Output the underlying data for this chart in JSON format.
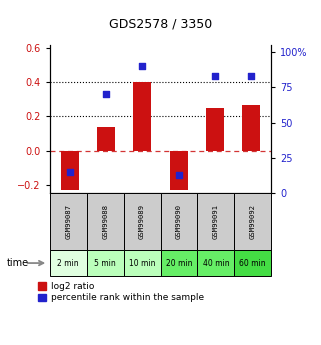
{
  "title": "GDS2578 / 3350",
  "samples": [
    "GSM99087",
    "GSM99088",
    "GSM99089",
    "GSM99090",
    "GSM99091",
    "GSM99092"
  ],
  "time_labels": [
    "2 min",
    "5 min",
    "10 min",
    "20 min",
    "40 min",
    "60 min"
  ],
  "log2_ratio": [
    -0.23,
    0.14,
    0.4,
    -0.23,
    0.25,
    0.27
  ],
  "percentile_rank": [
    15,
    70,
    90,
    13,
    83,
    83
  ],
  "ylim_left": [
    -0.25,
    0.62
  ],
  "ylim_right": [
    0,
    105
  ],
  "left_ticks": [
    -0.2,
    0.0,
    0.2,
    0.4,
    0.6
  ],
  "right_ticks": [
    0,
    25,
    50,
    75,
    100
  ],
  "right_tick_labels": [
    "0",
    "25",
    "50",
    "75",
    "100%"
  ],
  "bar_color": "#cc1111",
  "dot_color": "#2222cc",
  "dotted_line_y": [
    0.2,
    0.4
  ],
  "dashed_line_y": 0.0,
  "sample_bg_color": "#cccccc",
  "time_bg_colors": [
    "#e0ffe0",
    "#bbffbb",
    "#bbffbb",
    "#66ee66",
    "#66ee66",
    "#44dd44"
  ],
  "legend_bar_label": "log2 ratio",
  "legend_dot_label": "percentile rank within the sample",
  "left_tick_color": "#cc1111",
  "right_tick_color": "#2222cc",
  "bg_color": "#ffffff"
}
